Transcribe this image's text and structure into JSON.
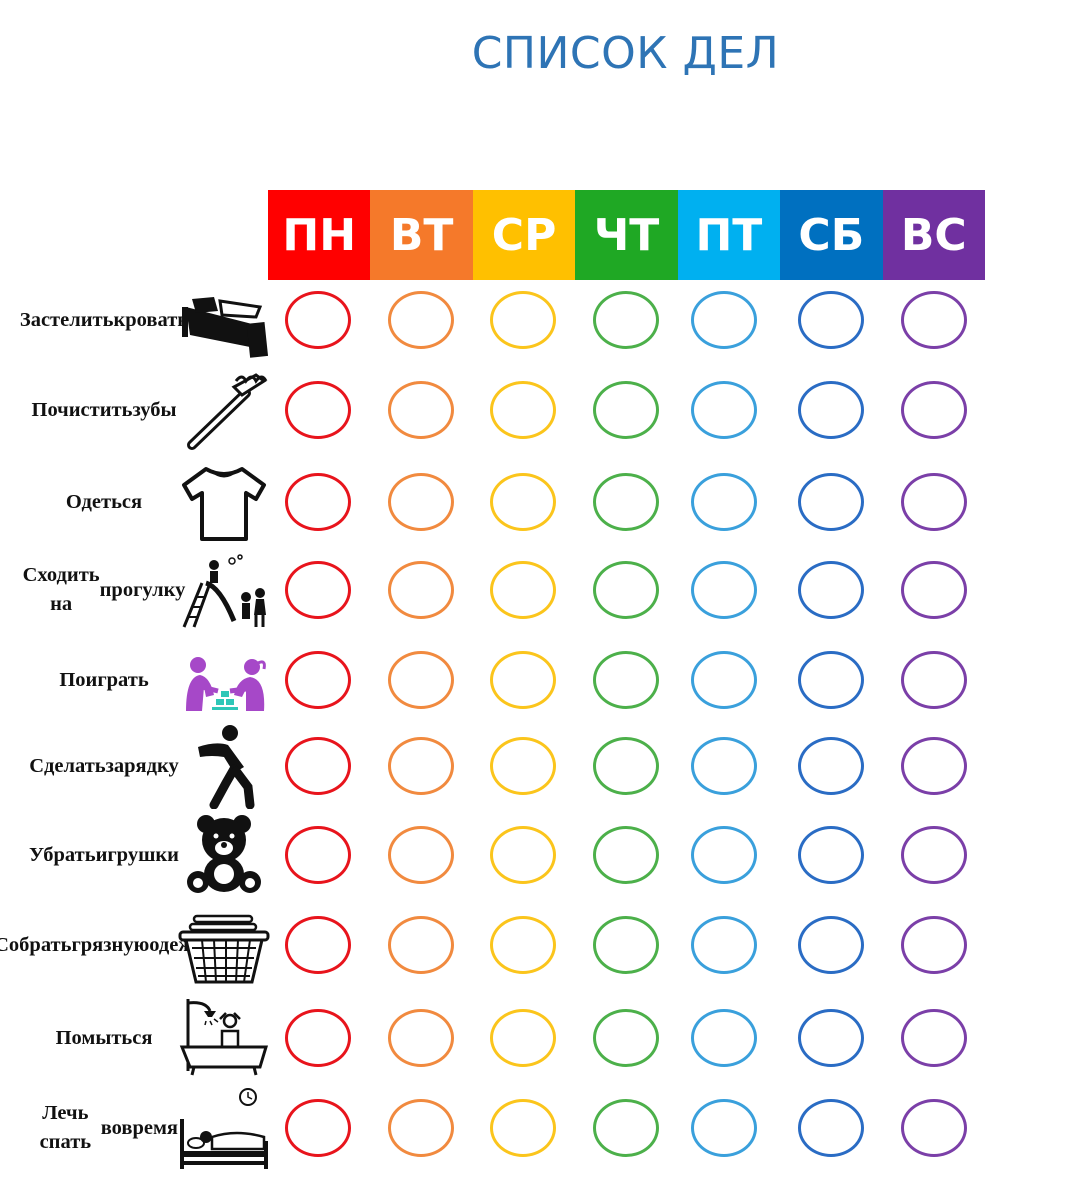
{
  "title": "СПИСОК ДЕЛ",
  "days": [
    {
      "label": "ПН",
      "color": "#ff0000"
    },
    {
      "label": "ВТ",
      "color": "#f5792a"
    },
    {
      "label": "СР",
      "color": "#ffc000"
    },
    {
      "label": "ЧТ",
      "color": "#1fa824"
    },
    {
      "label": "ПТ",
      "color": "#00b0f0"
    },
    {
      "label": "СБ",
      "color": "#0070c0"
    },
    {
      "label": "ВС",
      "color": "#7030a0"
    }
  ],
  "ring_colors": [
    "#e8141c",
    "#f18a3f",
    "#fbc51c",
    "#4cb04a",
    "#3aa0dc",
    "#2a6cc4",
    "#7b3fa8"
  ],
  "tasks": [
    {
      "lines": [
        "Застелить",
        "кровать"
      ],
      "icon": "bed-icon"
    },
    {
      "lines": [
        "Почистить",
        "зубы"
      ],
      "icon": "toothbrush-icon"
    },
    {
      "lines": [
        "Одеться"
      ],
      "icon": "tshirt-icon"
    },
    {
      "lines": [
        "Сходить на",
        "прогулку"
      ],
      "icon": "playground-icon"
    },
    {
      "lines": [
        "Поиграть"
      ],
      "icon": "kids-playing-icon"
    },
    {
      "lines": [
        "Сделать",
        "зарядку"
      ],
      "icon": "exercise-icon"
    },
    {
      "lines": [
        "Убрать",
        "игрушки"
      ],
      "icon": "teddy-bear-icon"
    },
    {
      "lines": [
        "Собрать",
        "грязную",
        "одежду"
      ],
      "icon": "laundry-basket-icon"
    },
    {
      "lines": [
        "Помыться"
      ],
      "icon": "bath-icon"
    },
    {
      "lines": [
        "Лечь спать",
        "вовремя"
      ],
      "icon": "sleeping-icon"
    }
  ]
}
